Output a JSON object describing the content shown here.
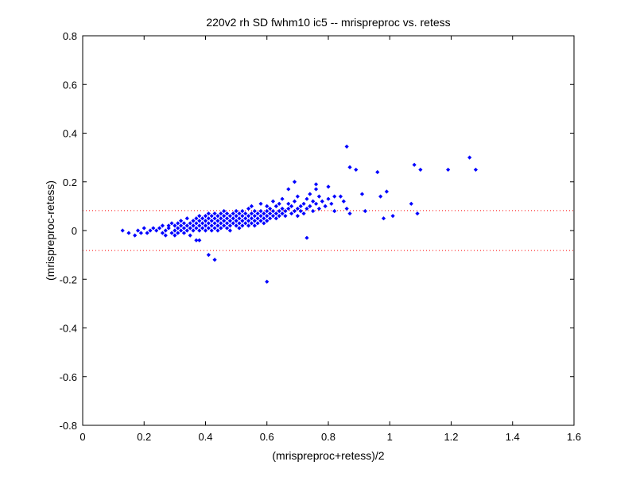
{
  "chart_data": {
    "type": "scatter",
    "title": "220v2 rh SD fwhm10 ic5 -- mrispreproc vs. retess",
    "xlabel": "(mrispreproc+retess)/2",
    "ylabel": "(mrispreproc-retess)",
    "xlim": [
      0,
      1.6
    ],
    "ylim": [
      -0.8,
      0.8
    ],
    "xticks": [
      0,
      0.2,
      0.4,
      0.6,
      0.8,
      1,
      1.2,
      1.4,
      1.6
    ],
    "yticks": [
      -0.8,
      -0.6,
      -0.4,
      -0.2,
      0,
      0.2,
      0.4,
      0.6,
      0.8
    ],
    "xtick_labels": [
      "0",
      "0.2",
      "0.4",
      "0.6",
      "0.8",
      "1",
      "1.2",
      "1.4",
      "1.6"
    ],
    "ytick_labels": [
      "-0.8",
      "-0.6",
      "-0.4",
      "-0.2",
      "0",
      "0.2",
      "0.4",
      "0.6",
      "0.8"
    ],
    "grid": false,
    "marker_color": "#0000ff",
    "reference_line_color": "#ff0000",
    "reference_lines_y": [
      0.082,
      -0.082
    ],
    "points": [
      [
        0.13,
        0.0
      ],
      [
        0.15,
        -0.01
      ],
      [
        0.17,
        -0.02
      ],
      [
        0.18,
        0.0
      ],
      [
        0.19,
        -0.01
      ],
      [
        0.2,
        0.01
      ],
      [
        0.21,
        -0.01
      ],
      [
        0.22,
        0.0
      ],
      [
        0.23,
        0.01
      ],
      [
        0.24,
        0.0
      ],
      [
        0.25,
        0.01
      ],
      [
        0.26,
        -0.01
      ],
      [
        0.26,
        0.02
      ],
      [
        0.27,
        0.0
      ],
      [
        0.27,
        -0.02
      ],
      [
        0.28,
        0.01
      ],
      [
        0.28,
        0.02
      ],
      [
        0.29,
        -0.01
      ],
      [
        0.29,
        0.03
      ],
      [
        0.3,
        0.0
      ],
      [
        0.3,
        0.02
      ],
      [
        0.3,
        -0.02
      ],
      [
        0.31,
        0.01
      ],
      [
        0.31,
        0.03
      ],
      [
        0.31,
        -0.01
      ],
      [
        0.32,
        0.0
      ],
      [
        0.32,
        0.02
      ],
      [
        0.32,
        0.04
      ],
      [
        0.33,
        0.01
      ],
      [
        0.33,
        -0.01
      ],
      [
        0.33,
        0.03
      ],
      [
        0.34,
        0.02
      ],
      [
        0.34,
        0.0
      ],
      [
        0.34,
        0.05
      ],
      [
        0.35,
        0.01
      ],
      [
        0.35,
        0.03
      ],
      [
        0.35,
        -0.02
      ],
      [
        0.36,
        0.02
      ],
      [
        0.36,
        0.04
      ],
      [
        0.36,
        0.0
      ],
      [
        0.37,
        0.03
      ],
      [
        0.37,
        0.01
      ],
      [
        0.37,
        0.05
      ],
      [
        0.37,
        -0.04
      ],
      [
        0.38,
        0.02
      ],
      [
        0.38,
        0.04
      ],
      [
        0.38,
        0.0
      ],
      [
        0.38,
        0.06
      ],
      [
        0.39,
        0.03
      ],
      [
        0.39,
        0.01
      ],
      [
        0.39,
        0.05
      ],
      [
        0.4,
        0.02
      ],
      [
        0.4,
        0.04
      ],
      [
        0.4,
        0.0
      ],
      [
        0.4,
        0.06
      ],
      [
        0.41,
        0.03
      ],
      [
        0.41,
        0.05
      ],
      [
        0.41,
        0.01
      ],
      [
        0.41,
        0.07
      ],
      [
        0.42,
        0.02
      ],
      [
        0.42,
        0.04
      ],
      [
        0.42,
        0.06
      ],
      [
        0.42,
        0.0
      ],
      [
        0.43,
        0.03
      ],
      [
        0.43,
        0.05
      ],
      [
        0.43,
        0.01
      ],
      [
        0.43,
        0.07
      ],
      [
        0.44,
        0.02
      ],
      [
        0.44,
        0.04
      ],
      [
        0.44,
        0.06
      ],
      [
        0.44,
        0.0
      ],
      [
        0.45,
        0.03
      ],
      [
        0.45,
        0.05
      ],
      [
        0.45,
        0.07
      ],
      [
        0.45,
        0.01
      ],
      [
        0.46,
        0.02
      ],
      [
        0.46,
        0.04
      ],
      [
        0.46,
        0.06
      ],
      [
        0.46,
        0.08
      ],
      [
        0.47,
        0.03
      ],
      [
        0.47,
        0.05
      ],
      [
        0.47,
        0.01
      ],
      [
        0.47,
        0.07
      ],
      [
        0.48,
        0.02
      ],
      [
        0.48,
        0.04
      ],
      [
        0.48,
        0.06
      ],
      [
        0.48,
        0.0
      ],
      [
        0.49,
        0.03
      ],
      [
        0.49,
        0.05
      ],
      [
        0.49,
        0.07
      ],
      [
        0.5,
        0.02
      ],
      [
        0.5,
        0.04
      ],
      [
        0.5,
        0.06
      ],
      [
        0.5,
        0.08
      ],
      [
        0.51,
        0.03
      ],
      [
        0.51,
        0.05
      ],
      [
        0.51,
        0.07
      ],
      [
        0.51,
        0.01
      ],
      [
        0.52,
        0.04
      ],
      [
        0.52,
        0.06
      ],
      [
        0.52,
        0.02
      ],
      [
        0.52,
        0.08
      ],
      [
        0.53,
        0.03
      ],
      [
        0.53,
        0.05
      ],
      [
        0.53,
        0.07
      ],
      [
        0.54,
        0.04
      ],
      [
        0.54,
        0.06
      ],
      [
        0.54,
        0.02
      ],
      [
        0.54,
        0.09
      ],
      [
        0.55,
        0.05
      ],
      [
        0.55,
        0.03
      ],
      [
        0.55,
        0.07
      ],
      [
        0.55,
        0.1
      ],
      [
        0.56,
        0.04
      ],
      [
        0.56,
        0.06
      ],
      [
        0.56,
        0.08
      ],
      [
        0.56,
        0.02
      ],
      [
        0.57,
        0.05
      ],
      [
        0.57,
        0.07
      ],
      [
        0.57,
        0.03
      ],
      [
        0.58,
        0.06
      ],
      [
        0.58,
        0.04
      ],
      [
        0.58,
        0.08
      ],
      [
        0.58,
        0.11
      ],
      [
        0.59,
        0.05
      ],
      [
        0.59,
        0.07
      ],
      [
        0.59,
        0.03
      ],
      [
        0.6,
        0.06
      ],
      [
        0.6,
        0.08
      ],
      [
        0.6,
        0.04
      ],
      [
        0.6,
        0.1
      ],
      [
        0.61,
        0.07
      ],
      [
        0.61,
        0.05
      ],
      [
        0.61,
        0.09
      ],
      [
        0.62,
        0.06
      ],
      [
        0.62,
        0.08
      ],
      [
        0.62,
        0.12
      ],
      [
        0.63,
        0.07
      ],
      [
        0.63,
        0.05
      ],
      [
        0.63,
        0.1
      ],
      [
        0.64,
        0.08
      ],
      [
        0.64,
        0.06
      ],
      [
        0.64,
        0.11
      ],
      [
        0.65,
        0.07
      ],
      [
        0.65,
        0.09
      ],
      [
        0.65,
        0.13
      ],
      [
        0.66,
        0.08
      ],
      [
        0.66,
        0.06
      ],
      [
        0.67,
        0.09
      ],
      [
        0.67,
        0.11
      ],
      [
        0.68,
        0.07
      ],
      [
        0.68,
        0.1
      ],
      [
        0.69,
        0.08
      ],
      [
        0.69,
        0.12
      ],
      [
        0.7,
        0.09
      ],
      [
        0.7,
        0.06
      ],
      [
        0.7,
        0.14
      ],
      [
        0.71,
        0.1
      ],
      [
        0.71,
        0.08
      ],
      [
        0.72,
        0.11
      ],
      [
        0.72,
        0.07
      ],
      [
        0.73,
        0.09
      ],
      [
        0.73,
        0.13
      ],
      [
        0.74,
        0.1
      ],
      [
        0.74,
        0.15
      ],
      [
        0.75,
        0.08
      ],
      [
        0.75,
        0.12
      ],
      [
        0.76,
        0.11
      ],
      [
        0.76,
        0.17
      ],
      [
        0.77,
        0.09
      ],
      [
        0.77,
        0.14
      ],
      [
        0.78,
        0.12
      ],
      [
        0.79,
        0.1
      ],
      [
        0.8,
        0.13
      ],
      [
        0.81,
        0.11
      ],
      [
        0.82,
        0.08
      ],
      [
        0.84,
        0.14
      ],
      [
        0.85,
        0.12
      ],
      [
        0.86,
        0.09
      ],
      [
        0.87,
        0.07
      ],
      [
        0.38,
        -0.04
      ],
      [
        0.41,
        -0.1
      ],
      [
        0.43,
        -0.12
      ],
      [
        0.6,
        -0.21
      ],
      [
        0.73,
        -0.03
      ],
      [
        0.67,
        0.17
      ],
      [
        0.69,
        0.2
      ],
      [
        0.76,
        0.19
      ],
      [
        0.8,
        0.18
      ],
      [
        0.82,
        0.14
      ],
      [
        0.86,
        0.345
      ],
      [
        0.87,
        0.26
      ],
      [
        0.89,
        0.25
      ],
      [
        0.91,
        0.15
      ],
      [
        0.92,
        0.08
      ],
      [
        0.96,
        0.24
      ],
      [
        0.97,
        0.14
      ],
      [
        0.98,
        0.05
      ],
      [
        0.99,
        0.16
      ],
      [
        1.01,
        0.06
      ],
      [
        1.07,
        0.11
      ],
      [
        1.08,
        0.27
      ],
      [
        1.09,
        0.07
      ],
      [
        1.1,
        0.25
      ],
      [
        1.19,
        0.25
      ],
      [
        1.26,
        0.3
      ],
      [
        1.28,
        0.25
      ]
    ]
  }
}
